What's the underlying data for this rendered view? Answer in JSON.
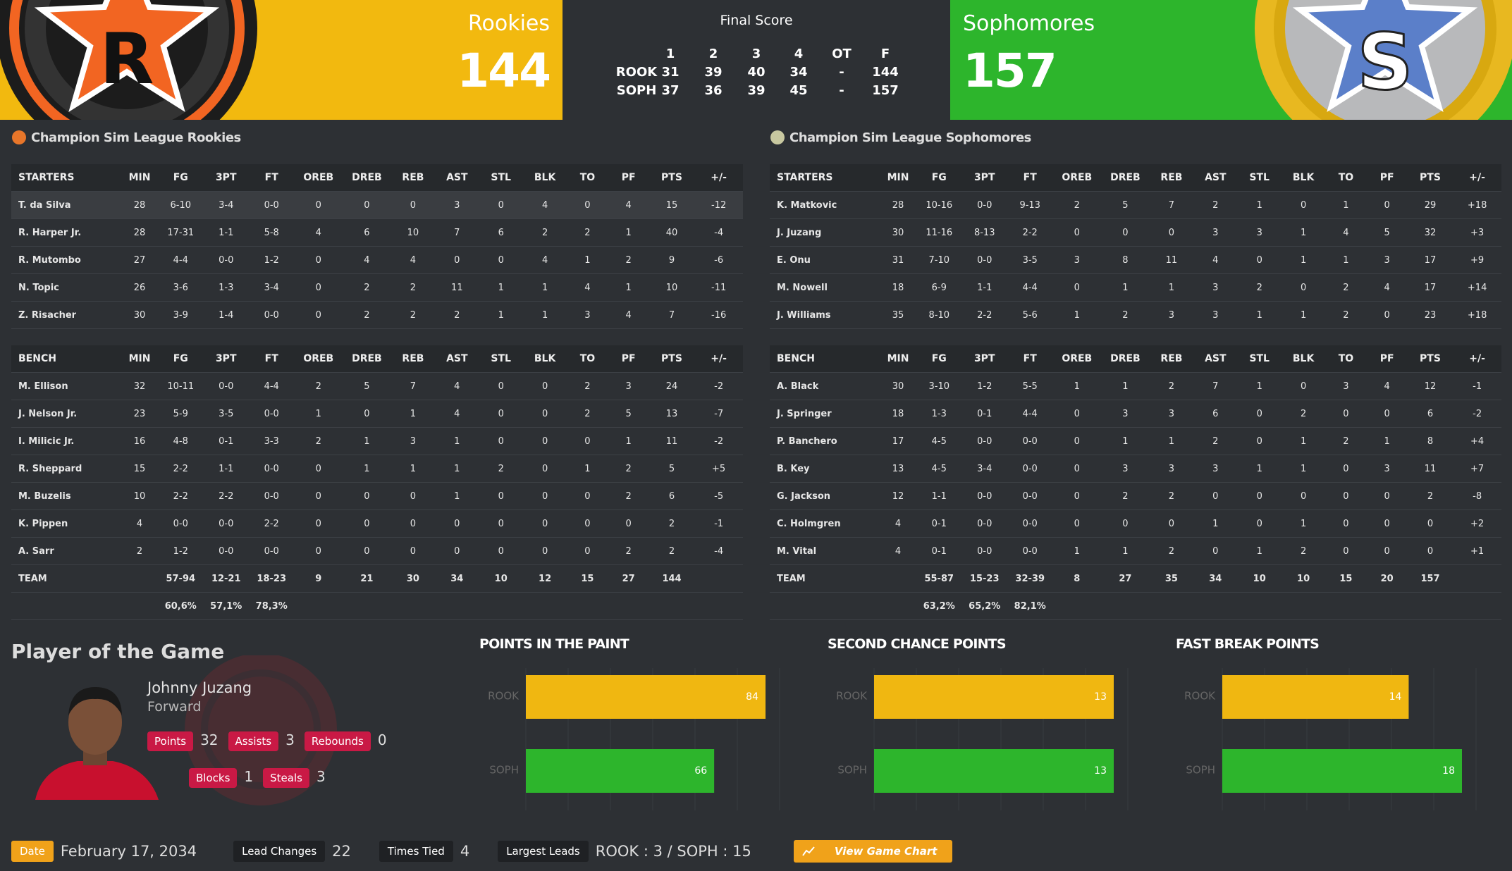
{
  "header": {
    "rookies": {
      "name": "Rookies",
      "score": 144,
      "logo_letter": "R"
    },
    "sophomores": {
      "name": "Sophomores",
      "score": 157,
      "logo_letter": "S"
    },
    "final_score": {
      "title": "Final Score",
      "columns": [
        1,
        2,
        3,
        4,
        "OT",
        "F"
      ],
      "rows": [
        [
          "ROOK",
          31,
          39,
          40,
          34,
          "-",
          144
        ],
        [
          "SOPH",
          37,
          36,
          39,
          45,
          "-",
          157
        ]
      ]
    }
  },
  "teams": [
    {
      "title": "Champion Sim League Rookies",
      "starters": {
        "header": [
          "STARTERS",
          "MIN",
          "FG",
          "3PT",
          "FT",
          "OREB",
          "DREB",
          "REB",
          "AST",
          "STL",
          "BLK",
          "TO",
          "PF",
          "PTS",
          "+/-"
        ],
        "rows": [
          [
            "T. da Silva",
            28,
            "6-10",
            "3-4",
            "0-0",
            0,
            0,
            0,
            3,
            0,
            4,
            0,
            4,
            15,
            -12
          ],
          [
            "R. Harper Jr.",
            28,
            "17-31",
            "1-1",
            "5-8",
            4,
            6,
            10,
            7,
            6,
            2,
            2,
            1,
            40,
            -4
          ],
          [
            "R. Mutombo",
            27,
            "4-4",
            "0-0",
            "1-2",
            0,
            4,
            4,
            0,
            0,
            4,
            1,
            2,
            9,
            -6
          ],
          [
            "N. Topic",
            26,
            "3-6",
            "1-3",
            "3-4",
            0,
            2,
            2,
            11,
            1,
            1,
            4,
            1,
            10,
            -11
          ],
          [
            "Z. Risacher",
            30,
            "3-9",
            "1-4",
            "0-0",
            0,
            2,
            2,
            2,
            1,
            1,
            3,
            4,
            7,
            -16
          ]
        ]
      },
      "bench": {
        "header": [
          "BENCH",
          "MIN",
          "FG",
          "3PT",
          "FT",
          "OREB",
          "DREB",
          "REB",
          "AST",
          "STL",
          "BLK",
          "TO",
          "PF",
          "PTS",
          "+/-"
        ],
        "rows": [
          [
            "M. Ellison",
            32,
            "10-11",
            "0-0",
            "4-4",
            2,
            5,
            7,
            4,
            0,
            0,
            2,
            3,
            24,
            -2
          ],
          [
            "J. Nelson Jr.",
            23,
            "5-9",
            "3-5",
            "0-0",
            1,
            0,
            1,
            4,
            0,
            0,
            2,
            5,
            13,
            -7
          ],
          [
            "I. Milicic Jr.",
            16,
            "4-8",
            "0-1",
            "3-3",
            2,
            1,
            3,
            1,
            0,
            0,
            0,
            1,
            11,
            -2
          ],
          [
            "R. Sheppard",
            15,
            "2-2",
            "1-1",
            "0-0",
            0,
            1,
            1,
            1,
            2,
            0,
            1,
            2,
            5,
            "+5"
          ],
          [
            "M. Buzelis",
            10,
            "2-2",
            "2-2",
            "0-0",
            0,
            0,
            0,
            1,
            0,
            0,
            0,
            2,
            6,
            -5
          ],
          [
            "K. Pippen",
            4,
            "0-0",
            "0-0",
            "2-2",
            0,
            0,
            0,
            0,
            0,
            0,
            0,
            0,
            2,
            -1
          ],
          [
            "A. Sarr",
            2,
            "1-2",
            "0-0",
            "0-0",
            0,
            0,
            0,
            0,
            0,
            0,
            0,
            2,
            2,
            -4
          ]
        ]
      },
      "team_row": [
        "TEAM",
        null,
        "57-94",
        "12-21",
        "18-23",
        9,
        21,
        30,
        34,
        10,
        12,
        15,
        27,
        144,
        null
      ],
      "percentages": [
        "60,6%",
        "57,1%",
        "78,3%"
      ]
    },
    {
      "title": "Champion Sim League Sophomores",
      "starters": {
        "header": [
          "STARTERS",
          "MIN",
          "FG",
          "3PT",
          "FT",
          "OREB",
          "DREB",
          "REB",
          "AST",
          "STL",
          "BLK",
          "TO",
          "PF",
          "PTS",
          "+/-"
        ],
        "rows": [
          [
            "K. Matkovic",
            28,
            "10-16",
            "0-0",
            "9-13",
            2,
            5,
            7,
            2,
            1,
            0,
            1,
            0,
            29,
            "+18"
          ],
          [
            "J. Juzang",
            30,
            "11-16",
            "8-13",
            "2-2",
            0,
            0,
            0,
            3,
            3,
            1,
            4,
            5,
            32,
            "+3"
          ],
          [
            "E. Onu",
            31,
            "7-10",
            "0-0",
            "3-5",
            3,
            8,
            11,
            4,
            0,
            1,
            1,
            3,
            17,
            "+9"
          ],
          [
            "M. Nowell",
            18,
            "6-9",
            "1-1",
            "4-4",
            0,
            1,
            1,
            3,
            2,
            0,
            2,
            4,
            17,
            "+14"
          ],
          [
            "J. Williams",
            35,
            "8-10",
            "2-2",
            "5-6",
            1,
            2,
            3,
            3,
            1,
            1,
            2,
            0,
            23,
            "+18"
          ]
        ]
      },
      "bench": {
        "header": [
          "BENCH",
          "MIN",
          "FG",
          "3PT",
          "FT",
          "OREB",
          "DREB",
          "REB",
          "AST",
          "STL",
          "BLK",
          "TO",
          "PF",
          "PTS",
          "+/-"
        ],
        "rows": [
          [
            "A. Black",
            30,
            "3-10",
            "1-2",
            "5-5",
            1,
            1,
            2,
            7,
            1,
            0,
            3,
            4,
            12,
            -1
          ],
          [
            "J. Springer",
            18,
            "1-3",
            "0-1",
            "4-4",
            0,
            3,
            3,
            6,
            0,
            2,
            0,
            0,
            6,
            -2
          ],
          [
            "P. Banchero",
            17,
            "4-5",
            "0-0",
            "0-0",
            0,
            1,
            1,
            2,
            0,
            1,
            2,
            1,
            8,
            "+4"
          ],
          [
            "B. Key",
            13,
            "4-5",
            "3-4",
            "0-0",
            0,
            3,
            3,
            3,
            1,
            1,
            0,
            3,
            11,
            "+7"
          ],
          [
            "G. Jackson",
            12,
            "1-1",
            "0-0",
            "0-0",
            0,
            2,
            2,
            0,
            0,
            0,
            0,
            0,
            2,
            -8
          ],
          [
            "C. Holmgren",
            4,
            "0-1",
            "0-0",
            "0-0",
            0,
            0,
            0,
            1,
            0,
            1,
            0,
            0,
            0,
            "+2"
          ],
          [
            "M. Vital",
            4,
            "0-1",
            "0-0",
            "0-0",
            1,
            1,
            2,
            0,
            1,
            2,
            0,
            0,
            0,
            "+1"
          ]
        ]
      },
      "team_row": [
        "TEAM",
        null,
        "55-87",
        "15-23",
        "32-39",
        8,
        27,
        35,
        34,
        10,
        10,
        15,
        20,
        157,
        null
      ],
      "percentages": [
        "63,2%",
        "65,2%",
        "82,1%"
      ]
    }
  ],
  "player_of_the_game": {
    "title": "Player of the Game",
    "name": "Johnny Juzang",
    "position": "Forward",
    "stats": [
      {
        "label": "Points",
        "value": 32
      },
      {
        "label": "Assists",
        "value": 3
      },
      {
        "label": "Rebounds",
        "value": 0
      },
      {
        "label": "Blocks",
        "value": 1
      },
      {
        "label": "Steals",
        "value": 3
      }
    ]
  },
  "stat_charts": [
    {
      "title": "POINTS IN THE PAINT",
      "bars": [
        {
          "label": "ROOK",
          "value": 84,
          "color": "#f0b711"
        },
        {
          "label": "SOPH",
          "value": 66,
          "color": "#2db52c"
        }
      ]
    },
    {
      "title": "SECOND CHANCE POINTS",
      "bars": [
        {
          "label": "ROOK",
          "value": 13,
          "color": "#f0b711"
        },
        {
          "label": "SOPH",
          "value": 13,
          "color": "#2db52c"
        }
      ]
    },
    {
      "title": "FAST BREAK POINTS",
      "bars": [
        {
          "label": "ROOK",
          "value": 14,
          "color": "#f0b711"
        },
        {
          "label": "SOPH",
          "value": 18,
          "color": "#2db52c"
        }
      ]
    }
  ],
  "footer": {
    "date": {
      "label": "Date",
      "value": "February 17, 2034"
    },
    "lead_changes": {
      "label": "Lead Changes",
      "value": 22
    },
    "times_tied": {
      "label": "Times Tied",
      "value": 4
    },
    "largest_leads": {
      "label": "Largest Leads",
      "value": "ROOK : 3 / SOPH : 15"
    },
    "button": "View Game Chart"
  }
}
